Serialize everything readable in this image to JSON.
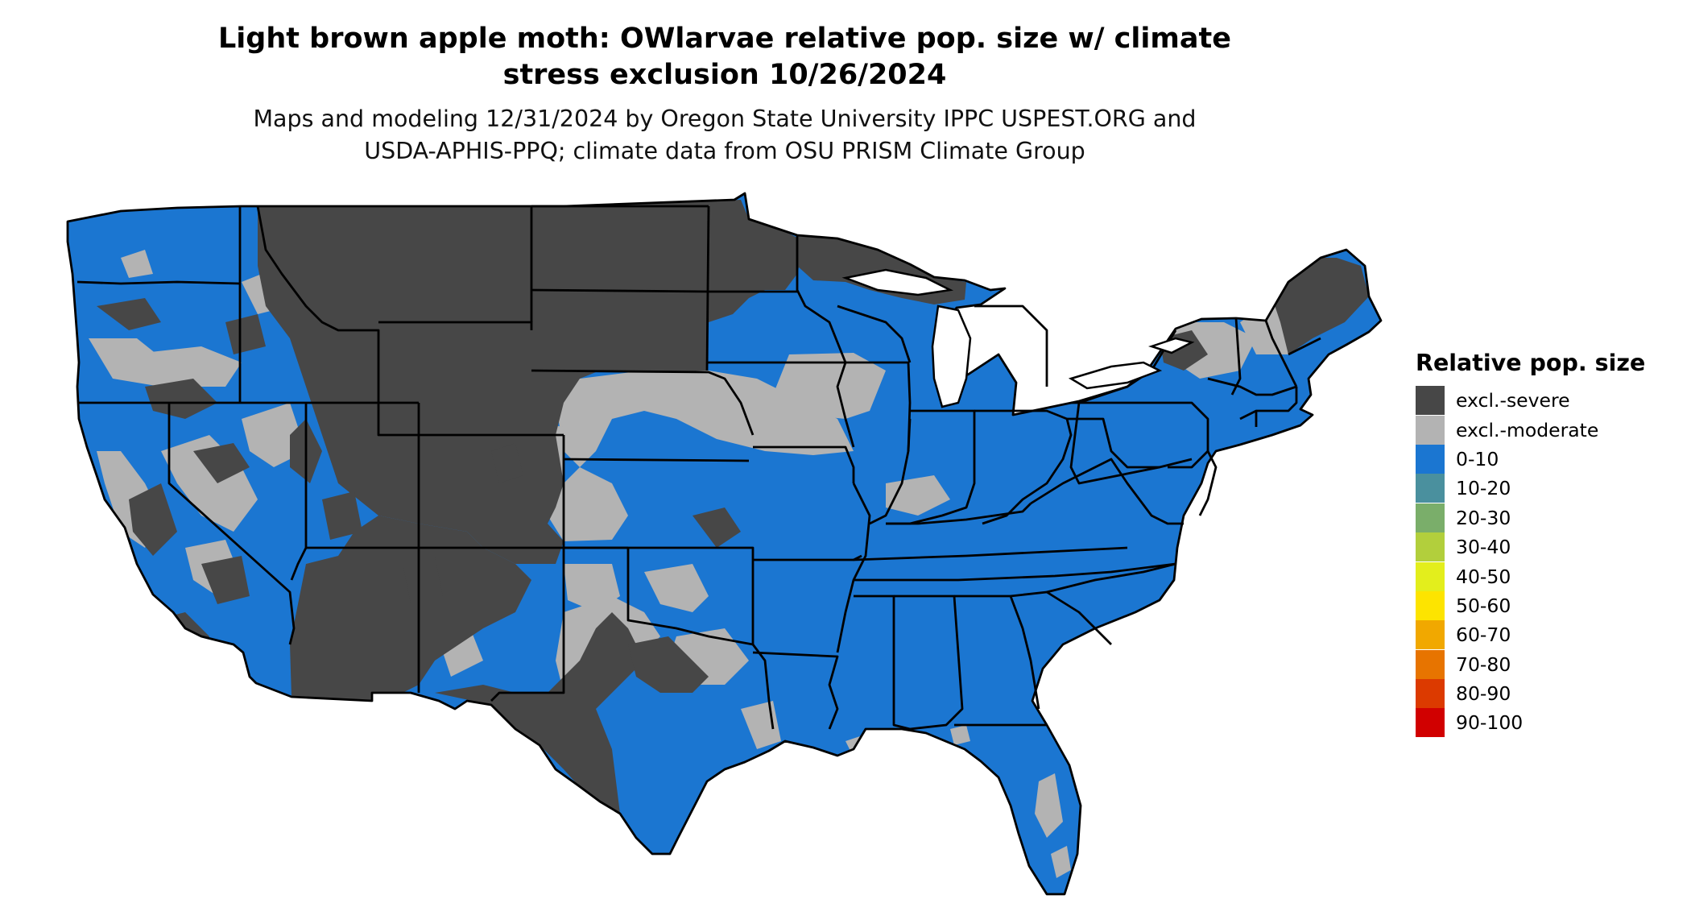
{
  "title_line1": "Light brown apple moth: OWlarvae relative pop. size w/ climate",
  "title_line2": "stress exclusion 10/26/2024",
  "subtitle_line1": "Maps and modeling 12/31/2024 by Oregon State University IPPC USPEST.ORG and",
  "subtitle_line2": "USDA-APHIS-PPQ; climate data from OSU PRISM Climate Group",
  "legend": {
    "title": "Relative pop. size",
    "items": [
      {
        "label": "excl.-severe",
        "color": "#474747"
      },
      {
        "label": "excl.-moderate",
        "color": "#b3b3b3"
      },
      {
        "label": "0-10",
        "color": "#1b76d1"
      },
      {
        "label": "10-20",
        "color": "#4a909e"
      },
      {
        "label": "20-30",
        "color": "#7aae6a"
      },
      {
        "label": "30-40",
        "color": "#b2cf3c"
      },
      {
        "label": "40-50",
        "color": "#e3ee1c"
      },
      {
        "label": "50-60",
        "color": "#fde400"
      },
      {
        "label": "60-70",
        "color": "#f1a800"
      },
      {
        "label": "70-80",
        "color": "#e77400"
      },
      {
        "label": "80-90",
        "color": "#dc3a00"
      },
      {
        "label": "90-100",
        "color": "#d10000"
      }
    ]
  },
  "map_colors": {
    "severe": "#474747",
    "moderate": "#b3b3b3",
    "low": "#1b76d1",
    "border": "#000000"
  }
}
